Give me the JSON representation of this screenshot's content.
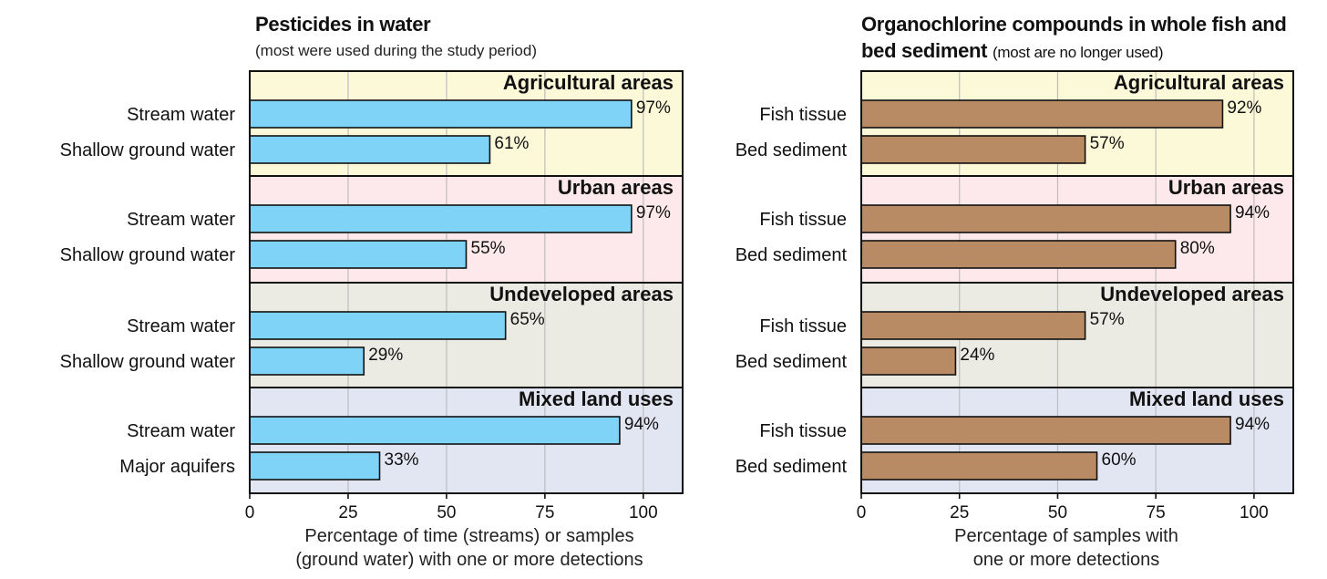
{
  "chart_data": [
    {
      "type": "bar",
      "orientation": "horizontal",
      "title": "Pesticides in water",
      "subtitle": "(most were used during the study period)",
      "xlabel_lines": [
        "Percentage of time (streams) or samples",
        "(ground water) with one or more detections"
      ],
      "xlim": [
        0,
        110
      ],
      "xticks": [
        "0",
        "25",
        "50",
        "75",
        "100"
      ],
      "grid": true,
      "bar_color": "#7fd3f7",
      "groups": [
        {
          "name": "Agricultural areas",
          "bg": "#fcf9d9",
          "bars": [
            {
              "label": "Stream water",
              "value": 97,
              "value_label": "97%"
            },
            {
              "label": "Shallow ground water",
              "value": 61,
              "value_label": "61%"
            }
          ]
        },
        {
          "name": "Urban areas",
          "bg": "#fde9eb",
          "bars": [
            {
              "label": "Stream water",
              "value": 97,
              "value_label": "97%"
            },
            {
              "label": "Shallow ground water",
              "value": 55,
              "value_label": "55%"
            }
          ]
        },
        {
          "name": "Undeveloped areas",
          "bg": "#ebeae3",
          "bars": [
            {
              "label": "Stream water",
              "value": 65,
              "value_label": "65%"
            },
            {
              "label": "Shallow ground water",
              "value": 29,
              "value_label": "29%"
            }
          ]
        },
        {
          "name": "Mixed land uses",
          "bg": "#e2e5f2",
          "bars": [
            {
              "label": "Stream water",
              "value": 94,
              "value_label": "94%"
            },
            {
              "label": "Major aquifers",
              "value": 33,
              "value_label": "33%"
            }
          ]
        }
      ]
    },
    {
      "type": "bar",
      "orientation": "horizontal",
      "title_line1": "Organochlorine compounds in whole fish and",
      "title_line2": "bed sediment",
      "subtitle": "(most are no longer used)",
      "xlabel_lines": [
        "Percentage of samples with",
        "one or more detections"
      ],
      "xlim": [
        0,
        110
      ],
      "xticks": [
        "0",
        "25",
        "50",
        "75",
        "100"
      ],
      "grid": true,
      "bar_color": "#b98b64",
      "groups": [
        {
          "name": "Agricultural areas",
          "bg": "#fcf9d9",
          "bars": [
            {
              "label": "Fish tissue",
              "value": 92,
              "value_label": "92%"
            },
            {
              "label": "Bed sediment",
              "value": 57,
              "value_label": "57%"
            }
          ]
        },
        {
          "name": "Urban areas",
          "bg": "#fde9eb",
          "bars": [
            {
              "label": "Fish tissue",
              "value": 94,
              "value_label": "94%"
            },
            {
              "label": "Bed sediment",
              "value": 80,
              "value_label": "80%"
            }
          ]
        },
        {
          "name": "Undeveloped areas",
          "bg": "#ebeae3",
          "bars": [
            {
              "label": "Fish tissue",
              "value": 57,
              "value_label": "57%"
            },
            {
              "label": "Bed sediment",
              "value": 24,
              "value_label": "24%"
            }
          ]
        },
        {
          "name": "Mixed land uses",
          "bg": "#e2e5f2",
          "bars": [
            {
              "label": "Fish tissue",
              "value": 94,
              "value_label": "94%"
            },
            {
              "label": "Bed sediment",
              "value": 60,
              "value_label": "60%"
            }
          ]
        }
      ]
    }
  ]
}
